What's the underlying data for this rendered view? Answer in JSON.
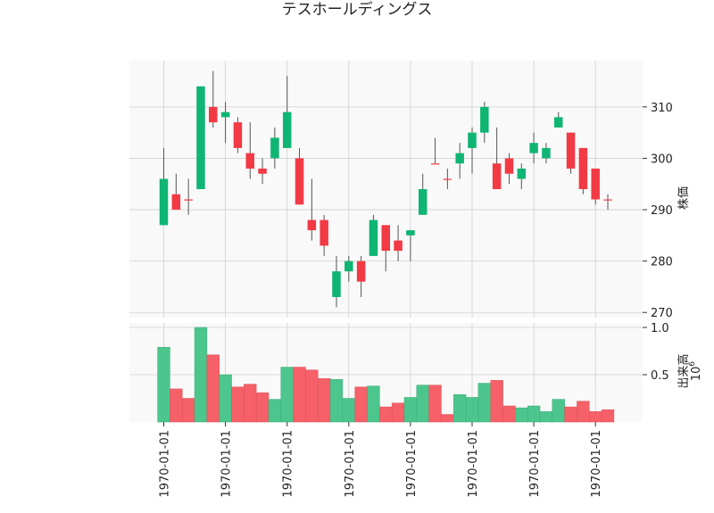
{
  "colors": {
    "up": "#0fb573",
    "down": "#f23a45",
    "up_volume": "#4cc68d",
    "down_volume": "#f66068",
    "panel_bg": "#f9f9f9",
    "grid": "#d0d0d0",
    "wick": "#555555"
  },
  "chart_data": {
    "type": "candlestick",
    "title": "テスホールディングス",
    "ylabel": "株価",
    "volume_label": "出来高",
    "volume_exponent_base": "10",
    "volume_exponent": "6",
    "ylim": [
      269,
      319
    ],
    "volume_ylim": [
      0,
      1.0
    ],
    "price_ticks": [
      270,
      280,
      290,
      300,
      310
    ],
    "volume_ticks": [
      0.5,
      1.0
    ],
    "x_tick_labels": [
      "1970-01-01",
      "1970-01-01",
      "1970-01-01",
      "1970-01-01",
      "1970-01-01",
      "1970-01-01",
      "1970-01-01",
      "1970-01-01"
    ],
    "x_tick_positions": [
      0,
      5,
      10,
      15,
      20,
      25,
      30,
      35
    ],
    "candles": [
      {
        "open": 287,
        "high": 302,
        "low": 287,
        "close": 296
      },
      {
        "open": 293,
        "high": 297,
        "low": 290,
        "close": 290
      },
      {
        "open": 292,
        "high": 296,
        "low": 289,
        "close": 292
      },
      {
        "open": 294,
        "high": 314,
        "low": 294,
        "close": 314
      },
      {
        "open": 310,
        "high": 317,
        "low": 306,
        "close": 307
      },
      {
        "open": 308,
        "high": 311,
        "low": 303,
        "close": 309
      },
      {
        "open": 307,
        "high": 308,
        "low": 301,
        "close": 302
      },
      {
        "open": 301,
        "high": 307,
        "low": 296,
        "close": 298
      },
      {
        "open": 298,
        "high": 300,
        "low": 295,
        "close": 297
      },
      {
        "open": 300,
        "high": 306,
        "low": 298,
        "close": 304
      },
      {
        "open": 302,
        "high": 316,
        "low": 302,
        "close": 309
      },
      {
        "open": 300,
        "high": 302,
        "low": 291,
        "close": 291
      },
      {
        "open": 288,
        "high": 296,
        "low": 284,
        "close": 286
      },
      {
        "open": 288,
        "high": 289,
        "low": 281,
        "close": 283
      },
      {
        "open": 273,
        "high": 281,
        "low": 271,
        "close": 278
      },
      {
        "open": 278,
        "high": 281,
        "low": 276,
        "close": 280
      },
      {
        "open": 280,
        "high": 281,
        "low": 273,
        "close": 276
      },
      {
        "open": 281,
        "high": 289,
        "low": 281,
        "close": 288
      },
      {
        "open": 287,
        "high": 287,
        "low": 278,
        "close": 282
      },
      {
        "open": 284,
        "high": 287,
        "low": 280,
        "close": 282
      },
      {
        "open": 285,
        "high": 286,
        "low": 280,
        "close": 286
      },
      {
        "open": 289,
        "high": 297,
        "low": 289,
        "close": 294
      },
      {
        "open": 299,
        "high": 304,
        "low": 299,
        "close": 299
      },
      {
        "open": 296,
        "high": 298,
        "low": 294,
        "close": 296
      },
      {
        "open": 299,
        "high": 303,
        "low": 296,
        "close": 301
      },
      {
        "open": 302,
        "high": 306,
        "low": 297,
        "close": 305
      },
      {
        "open": 305,
        "high": 311,
        "low": 303,
        "close": 310
      },
      {
        "open": 299,
        "high": 306,
        "low": 294,
        "close": 294
      },
      {
        "open": 300,
        "high": 301,
        "low": 295,
        "close": 297
      },
      {
        "open": 296,
        "high": 299,
        "low": 294,
        "close": 298
      },
      {
        "open": 301,
        "high": 305,
        "low": 299,
        "close": 303
      },
      {
        "open": 300,
        "high": 303,
        "low": 299,
        "close": 302
      },
      {
        "open": 306,
        "high": 309,
        "low": 306,
        "close": 308
      },
      {
        "open": 305,
        "high": 305,
        "low": 297,
        "close": 298
      },
      {
        "open": 302,
        "high": 302,
        "low": 293,
        "close": 294
      },
      {
        "open": 298,
        "high": 298,
        "low": 291,
        "close": 292
      },
      {
        "open": 292,
        "high": 293,
        "low": 290,
        "close": 292
      }
    ],
    "volumes": [
      0.79,
      0.35,
      0.25,
      1.0,
      0.71,
      0.5,
      0.37,
      0.4,
      0.31,
      0.24,
      0.58,
      0.58,
      0.55,
      0.46,
      0.45,
      0.25,
      0.37,
      0.38,
      0.16,
      0.2,
      0.26,
      0.39,
      0.39,
      0.08,
      0.29,
      0.26,
      0.41,
      0.44,
      0.17,
      0.15,
      0.17,
      0.11,
      0.24,
      0.16,
      0.22,
      0.11,
      0.13
    ]
  }
}
